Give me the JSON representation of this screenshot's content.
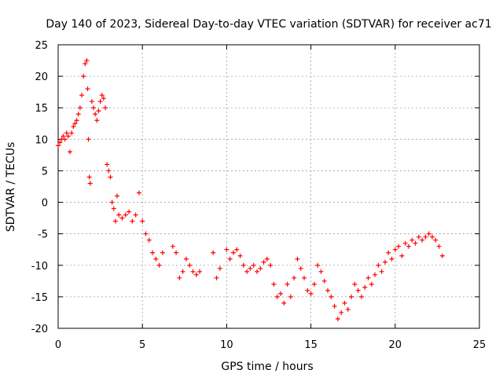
{
  "chart_data": {
    "type": "scatter",
    "title": "Day 140 of 2023, Sidereal Day-to-day VTEC variation (SDTVAR) for receiver ac71",
    "xlabel": "GPS time / hours",
    "ylabel": "SDTVAR / TECUs",
    "xlim": [
      0,
      25
    ],
    "ylim": [
      -20,
      25
    ],
    "x_ticks": [
      0,
      5,
      10,
      15,
      20,
      25
    ],
    "y_ticks": [
      -20,
      -15,
      -10,
      -5,
      0,
      5,
      10,
      15,
      20,
      25
    ],
    "x_tick_labels": [
      "0",
      "5",
      "10",
      "15",
      "20",
      "25"
    ],
    "y_tick_labels": [
      "-20",
      "-15",
      "-10",
      "-5",
      "0",
      "5",
      "10",
      "15",
      "20",
      "25"
    ],
    "grid": true,
    "marker": "+",
    "color": "#ff0000",
    "series": [
      {
        "name": "SDTVAR",
        "x": [
          0.0,
          0.1,
          0.2,
          0.3,
          0.4,
          0.5,
          0.6,
          0.7,
          0.8,
          0.9,
          1.0,
          1.1,
          1.2,
          1.3,
          1.4,
          1.5,
          1.6,
          1.7,
          1.75,
          1.8,
          1.85,
          1.9,
          2.0,
          2.1,
          2.2,
          2.3,
          2.4,
          2.5,
          2.6,
          2.7,
          2.8,
          2.9,
          3.0,
          3.1,
          3.2,
          3.3,
          3.4,
          3.5,
          3.6,
          3.8,
          4.0,
          4.2,
          4.4,
          4.6,
          4.8,
          5.0,
          5.2,
          5.4,
          5.6,
          5.8,
          6.0,
          6.2,
          6.8,
          7.0,
          7.2,
          7.4,
          7.6,
          7.8,
          8.0,
          8.2,
          8.4,
          9.2,
          9.4,
          9.6,
          10.0,
          10.2,
          10.4,
          10.6,
          10.8,
          11.0,
          11.2,
          11.4,
          11.6,
          11.8,
          12.0,
          12.2,
          12.4,
          12.6,
          12.8,
          13.0,
          13.2,
          13.4,
          13.6,
          13.8,
          14.0,
          14.2,
          14.4,
          14.6,
          14.8,
          15.0,
          15.2,
          15.4,
          15.6,
          15.8,
          16.0,
          16.2,
          16.4,
          16.6,
          16.8,
          17.0,
          17.2,
          17.4,
          17.6,
          17.8,
          18.0,
          18.2,
          18.4,
          18.6,
          18.8,
          19.0,
          19.2,
          19.4,
          19.6,
          19.8,
          20.0,
          20.2,
          20.4,
          20.6,
          20.8,
          21.0,
          21.2,
          21.4,
          21.6,
          21.8,
          22.0,
          22.2,
          22.4,
          22.6,
          22.8
        ],
        "y": [
          9.0,
          9.5,
          10.0,
          10.5,
          10.0,
          11.0,
          10.5,
          8.0,
          11.0,
          12.0,
          12.5,
          13.0,
          14.0,
          15.0,
          17.0,
          20.0,
          22.0,
          22.5,
          18.0,
          10.0,
          4.0,
          3.0,
          16.0,
          15.0,
          14.0,
          13.0,
          14.5,
          16.0,
          17.0,
          16.5,
          15.0,
          6.0,
          5.0,
          4.0,
          0.0,
          -1.0,
          -3.0,
          1.0,
          -2.0,
          -2.5,
          -2.0,
          -1.5,
          -3.0,
          -2.0,
          1.5,
          -3.0,
          -5.0,
          -6.0,
          -8.0,
          -9.0,
          -10.0,
          -8.0,
          -7.0,
          -8.0,
          -12.0,
          -11.0,
          -9.0,
          -10.0,
          -11.0,
          -11.5,
          -11.0,
          -8.0,
          -12.0,
          -10.5,
          -7.5,
          -9.0,
          -8.0,
          -7.5,
          -8.5,
          -10.0,
          -11.0,
          -10.5,
          -10.0,
          -11.0,
          -10.5,
          -9.5,
          -9.0,
          -10.0,
          -13.0,
          -15.0,
          -14.5,
          -16.0,
          -13.0,
          -15.0,
          -12.0,
          -9.0,
          -10.5,
          -12.0,
          -14.0,
          -14.5,
          -13.0,
          -10.0,
          -11.0,
          -12.5,
          -14.0,
          -15.0,
          -16.5,
          -18.5,
          -17.5,
          -16.0,
          -17.0,
          -15.0,
          -13.0,
          -14.0,
          -15.0,
          -13.5,
          -12.0,
          -13.0,
          -11.5,
          -10.0,
          -11.0,
          -9.5,
          -8.0,
          -9.0,
          -7.5,
          -7.0,
          -8.5,
          -6.5,
          -7.0,
          -6.0,
          -6.5,
          -5.5,
          -6.0,
          -5.5,
          -5.0,
          -5.5,
          -6.0,
          -7.0,
          -8.5
        ]
      }
    ]
  }
}
